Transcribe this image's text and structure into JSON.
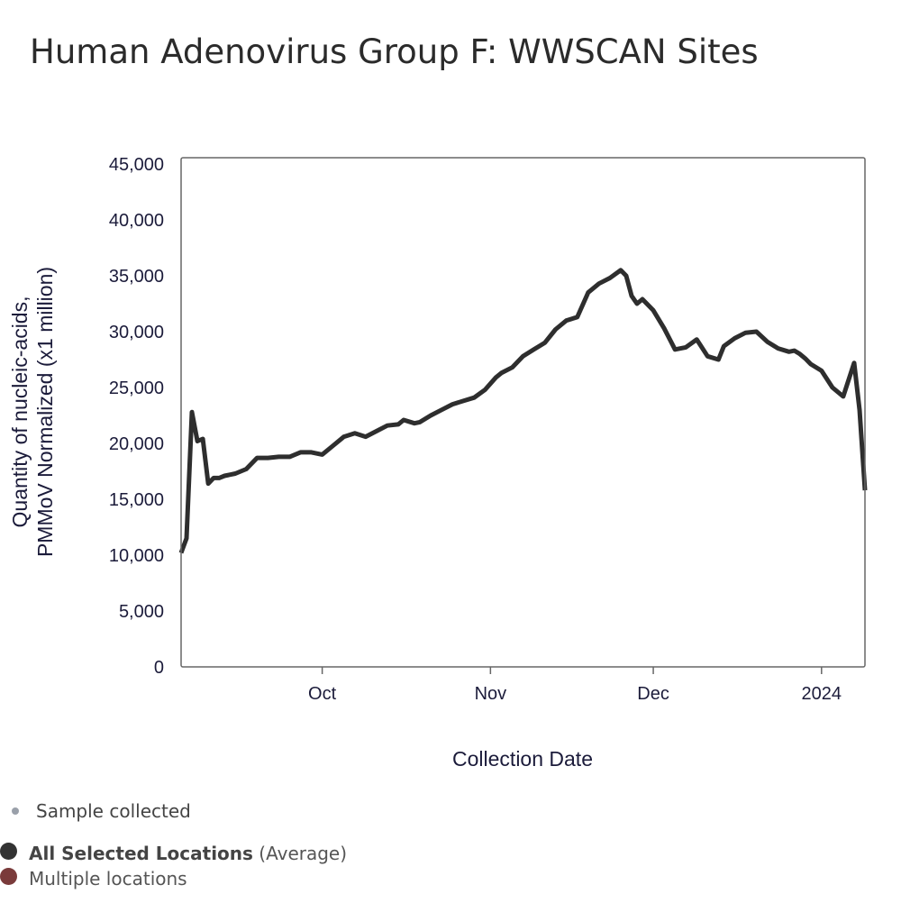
{
  "title": "Human Adenovirus Group F: WWSCAN Sites",
  "colors": {
    "line": "#2e2e2e",
    "axis": "#555555",
    "text": "#1b1b3a",
    "sample_dot": "#9aa0aa",
    "avg_dot": "#333333",
    "multi_dot": "#7a3b3b"
  },
  "legend": {
    "sample": "Sample collected",
    "avg_bold": "All Selected Locations",
    "avg_suffix": " (Average)",
    "multi": "Multiple locations"
  },
  "chart_data": {
    "type": "line",
    "xlabel": "Collection Date",
    "ylabel_line1": "Quantity of nucleic-acids,",
    "ylabel_line2": "PMMoV Normalized (x1 million)",
    "ylim": [
      0,
      45000
    ],
    "yticks": [
      0,
      5000,
      10000,
      15000,
      20000,
      25000,
      30000,
      35000,
      40000,
      45000
    ],
    "ytick_labels": [
      "0",
      "5,000",
      "10,000",
      "15,000",
      "20,000",
      "25,000",
      "30,000",
      "35,000",
      "40,000",
      "45,000"
    ],
    "xlim": [
      "2023-09-05",
      "2024-01-09"
    ],
    "xticks": [
      "2023-10-01",
      "2023-11-01",
      "2023-12-01",
      "2024-01-01"
    ],
    "xtick_labels": [
      "Oct",
      "Nov",
      "Dec",
      "2024"
    ],
    "grid": false,
    "series": [
      {
        "name": "All Selected Locations",
        "x": [
          "2023-09-05",
          "2023-09-06",
          "2023-09-07",
          "2023-09-08",
          "2023-09-09",
          "2023-09-10",
          "2023-09-11",
          "2023-09-12",
          "2023-09-13",
          "2023-09-15",
          "2023-09-17",
          "2023-09-19",
          "2023-09-21",
          "2023-09-23",
          "2023-09-25",
          "2023-09-27",
          "2023-09-29",
          "2023-10-01",
          "2023-10-03",
          "2023-10-05",
          "2023-10-07",
          "2023-10-09",
          "2023-10-11",
          "2023-10-13",
          "2023-10-15",
          "2023-10-16",
          "2023-10-18",
          "2023-10-19",
          "2023-10-21",
          "2023-10-23",
          "2023-10-25",
          "2023-10-27",
          "2023-10-29",
          "2023-10-31",
          "2023-11-02",
          "2023-11-03",
          "2023-11-05",
          "2023-11-07",
          "2023-11-09",
          "2023-11-11",
          "2023-11-13",
          "2023-11-15",
          "2023-11-17",
          "2023-11-19",
          "2023-11-21",
          "2023-11-23",
          "2023-11-25",
          "2023-11-26",
          "2023-11-27",
          "2023-11-28",
          "2023-11-29",
          "2023-12-01",
          "2023-12-03",
          "2023-12-05",
          "2023-12-07",
          "2023-12-09",
          "2023-12-11",
          "2023-12-13",
          "2023-12-14",
          "2023-12-16",
          "2023-12-18",
          "2023-12-20",
          "2023-12-22",
          "2023-12-24",
          "2023-12-26",
          "2023-12-27",
          "2023-12-28",
          "2023-12-29",
          "2023-12-30",
          "2024-01-01",
          "2024-01-03",
          "2024-01-05",
          "2024-01-07",
          "2024-01-08",
          "2024-01-09"
        ],
        "y": [
          10200,
          11500,
          22800,
          20200,
          20400,
          16400,
          16900,
          16900,
          17100,
          17300,
          17700,
          18700,
          18700,
          18800,
          18800,
          19200,
          19200,
          19000,
          19800,
          20600,
          20900,
          20600,
          21100,
          21600,
          21700,
          22100,
          21800,
          21900,
          22500,
          23000,
          23500,
          23800,
          24100,
          24800,
          25900,
          26300,
          26800,
          27800,
          28400,
          29000,
          30200,
          31000,
          31300,
          33500,
          34300,
          34800,
          35500,
          35000,
          33200,
          32500,
          32900,
          31900,
          30300,
          28400,
          28600,
          29300,
          27800,
          27500,
          28700,
          29400,
          29900,
          30000,
          29100,
          28500,
          28200,
          28300,
          28000,
          27600,
          27100,
          26500,
          25000,
          24200,
          27200,
          23000,
          15800
        ]
      }
    ]
  }
}
